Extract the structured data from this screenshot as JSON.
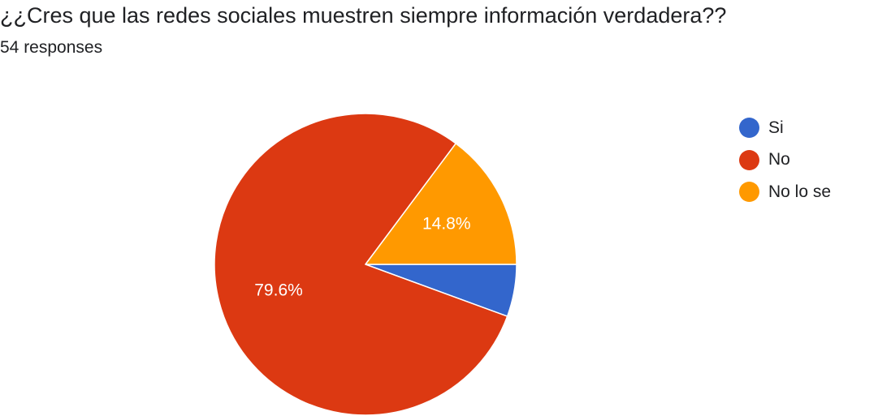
{
  "title": "¿¿Cres que las redes sociales muestren siempre información verdadera??",
  "subtitle": "54 responses",
  "chart_data": {
    "type": "pie",
    "title": "¿¿Cres que las redes sociales muestren siempre información verdadera??",
    "subtitle": "54 responses",
    "categories": [
      "Si",
      "No",
      "No lo se"
    ],
    "values": [
      5.6,
      79.6,
      14.8
    ],
    "data_labels": [
      "",
      "79.6%",
      "14.8%"
    ],
    "colors": [
      "#3366cc",
      "#dc3912",
      "#ff9900"
    ],
    "legend_position": "right",
    "start_direction": "east",
    "slice_direction": "clockwise"
  }
}
